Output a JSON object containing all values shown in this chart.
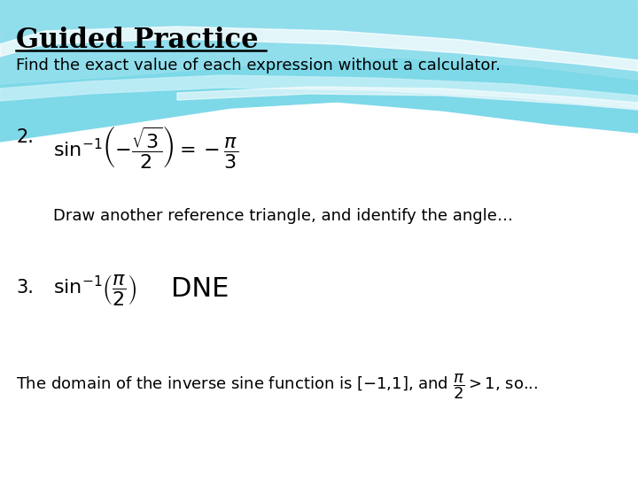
{
  "title": "Guided Practice",
  "subtitle": "Find the exact value of each expression without a calculator.",
  "line2_num": "2.",
  "line2_math": "$\\sin^{-1}\\!\\left(-\\dfrac{\\sqrt{3}}{2}\\right) = -\\dfrac{\\pi}{3}$",
  "line3": "Draw another reference triangle, and identify the angle…",
  "line4_num": "3.",
  "line4_math": "$\\sin^{-1}\\!\\left(\\dfrac{\\pi}{2}\\right)$",
  "line4_dne": "DNE",
  "line5": "The domain of the inverse sine function is [–1,1], and $\\dfrac{\\pi}{2}>1$, so...",
  "wave1_color": "#7dd8e8",
  "wave2_color": "#9de2ef",
  "wave3_color": "#c8f0f8",
  "wave_white": "#ffffff",
  "text_color": "#000000",
  "figsize": [
    7.2,
    5.4
  ],
  "dpi": 100
}
